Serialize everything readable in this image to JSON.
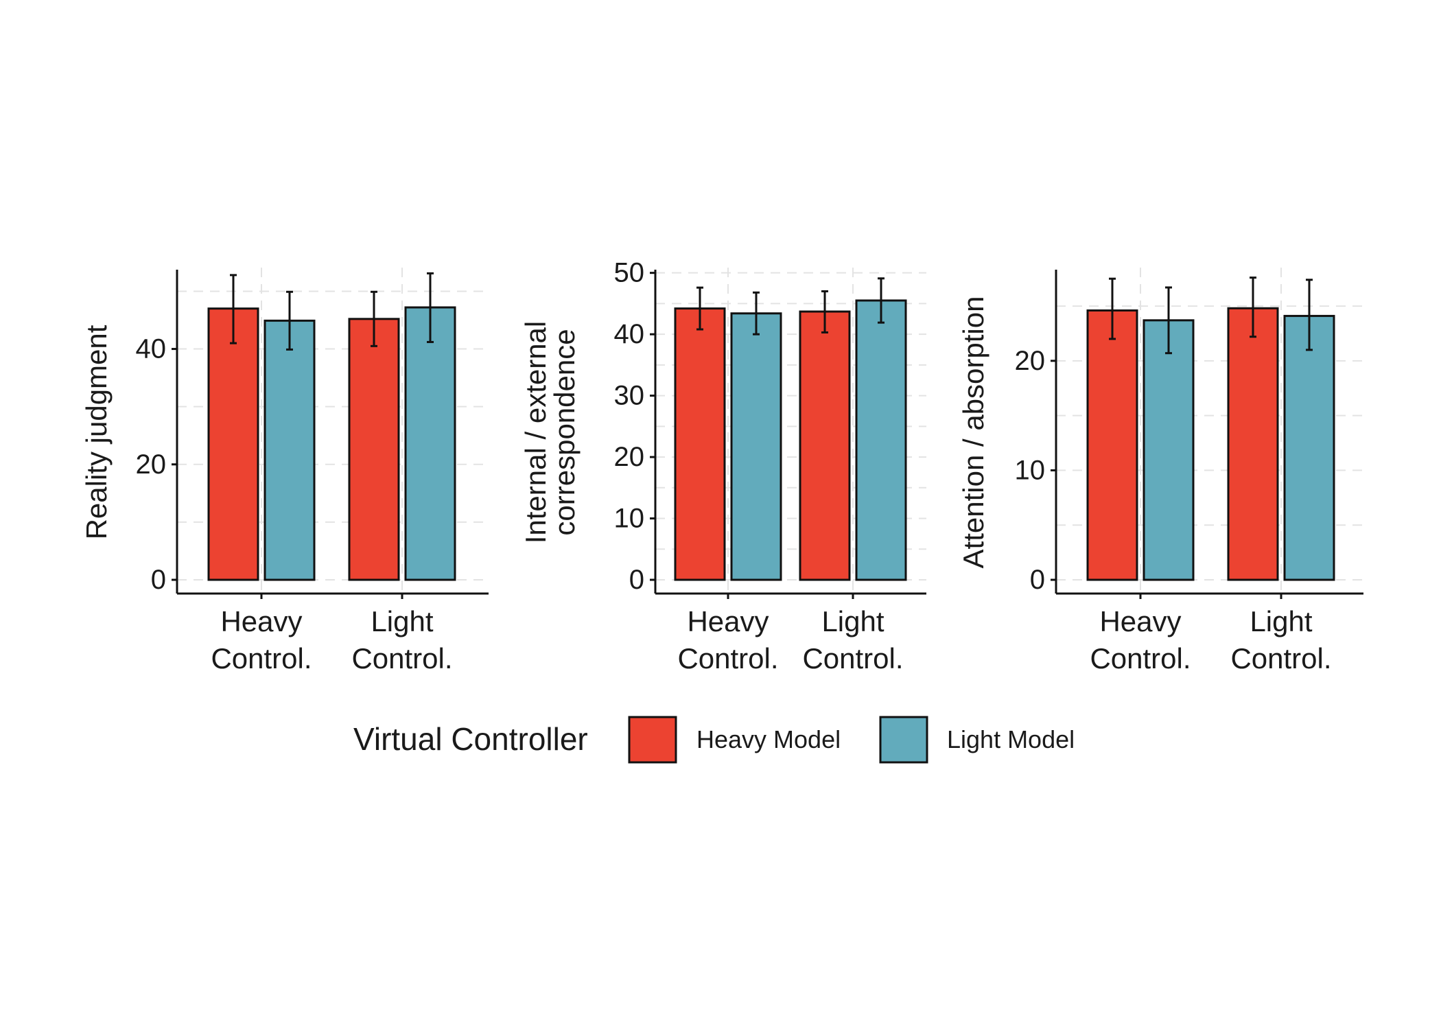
{
  "legend": {
    "title": "Virtual Controller",
    "items": [
      {
        "label": "Heavy Model",
        "color": "#EC4331"
      },
      {
        "label": "Light Model",
        "color": "#62ABBC"
      }
    ]
  },
  "chart_data": [
    {
      "type": "bar",
      "ylabel": [
        "Reality judgment"
      ],
      "categories": [
        [
          "Heavy",
          "Control."
        ],
        [
          "Light",
          "Control."
        ]
      ],
      "ylim": [
        0,
        53.5
      ],
      "yticks": [
        0,
        20,
        40
      ],
      "grid": true,
      "series": [
        {
          "name": "Heavy Model",
          "values": [
            47.0,
            45.2
          ],
          "err_low": [
            41.0,
            40.5
          ],
          "err_high": [
            52.8,
            49.9
          ]
        },
        {
          "name": "Light Model",
          "values": [
            44.9,
            47.2
          ],
          "err_low": [
            39.9,
            41.2
          ],
          "err_high": [
            49.9,
            53.1
          ]
        }
      ]
    },
    {
      "type": "bar",
      "ylabel": [
        "Internal / external",
        "correspondence"
      ],
      "categories": [
        [
          "Heavy",
          "Control."
        ],
        [
          "Light",
          "Control."
        ]
      ],
      "ylim": [
        0,
        50.3
      ],
      "yticks": [
        0,
        10,
        20,
        30,
        40,
        50
      ],
      "grid": true,
      "series": [
        {
          "name": "Heavy Model",
          "values": [
            44.2,
            43.7
          ],
          "err_low": [
            40.8,
            40.3
          ],
          "err_high": [
            47.6,
            47.0
          ]
        },
        {
          "name": "Light Model",
          "values": [
            43.4,
            45.5
          ],
          "err_low": [
            40.0,
            41.9
          ],
          "err_high": [
            46.8,
            49.1
          ]
        }
      ]
    },
    {
      "type": "bar",
      "ylabel": [
        "Attention / absorption"
      ],
      "categories": [
        [
          "Heavy",
          "Control."
        ],
        [
          "Light",
          "Control."
        ]
      ],
      "ylim": [
        0,
        28.2
      ],
      "yticks": [
        0,
        10,
        20
      ],
      "grid": true,
      "series": [
        {
          "name": "Heavy Model",
          "values": [
            24.6,
            24.8
          ],
          "err_low": [
            22.0,
            22.2
          ],
          "err_high": [
            27.5,
            27.6
          ]
        },
        {
          "name": "Light Model",
          "values": [
            23.7,
            24.1
          ],
          "err_low": [
            20.7,
            21.0
          ],
          "err_high": [
            26.7,
            27.4
          ]
        }
      ]
    }
  ]
}
